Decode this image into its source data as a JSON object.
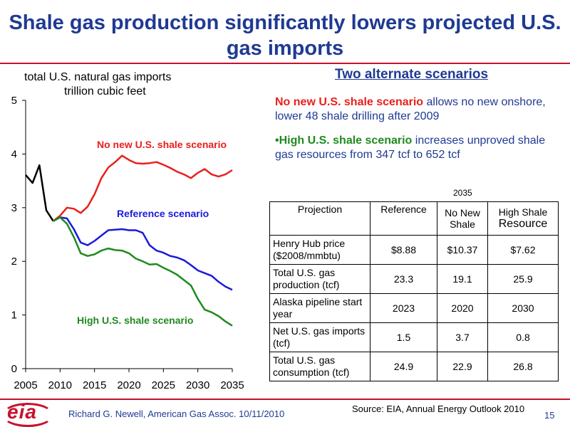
{
  "colors": {
    "title": "#1f3a93",
    "red": "#e8201c",
    "blue": "#1a1adb",
    "green": "#1f8a1f",
    "black": "#000000",
    "accent_text": "#1f3a93"
  },
  "slide": {
    "title_line1": "Shale gas production significantly lowers projected U.S.",
    "title_line2": "gas imports",
    "page_number": "15",
    "footer_text": "Richard G. Newell, American Gas Assoc. 10/11/2010",
    "source_text": "Source: EIA, Annual Energy Outlook 2010",
    "logo_text": "eia"
  },
  "chart_data": {
    "type": "line",
    "title": "total U.S. natural gas imports",
    "subtitle": "trillion cubic feet",
    "xlim": [
      2005,
      2035
    ],
    "ylim": [
      0,
      5
    ],
    "xticks": [
      2005,
      2010,
      2015,
      2020,
      2025,
      2030,
      2035
    ],
    "yticks": [
      0,
      1,
      2,
      3,
      4,
      5
    ],
    "grid": false,
    "series": [
      {
        "name": "history",
        "color": "#000000",
        "x": [
          2005,
          2006,
          2007,
          2008,
          2009
        ],
        "y": [
          3.61,
          3.46,
          3.79,
          2.95,
          2.75
        ]
      },
      {
        "name": "No new U.S. shale scenario",
        "color": "#e8201c",
        "x": [
          2009,
          2010,
          2011,
          2012,
          2013,
          2014,
          2015,
          2016,
          2017,
          2018,
          2019,
          2020,
          2021,
          2022,
          2023,
          2024,
          2025,
          2026,
          2027,
          2028,
          2029,
          2030,
          2031,
          2032,
          2033,
          2034,
          2035
        ],
        "y": [
          2.75,
          2.85,
          3.0,
          2.98,
          2.9,
          3.02,
          3.25,
          3.55,
          3.75,
          3.85,
          3.97,
          3.89,
          3.83,
          3.82,
          3.83,
          3.85,
          3.8,
          3.74,
          3.67,
          3.62,
          3.55,
          3.65,
          3.72,
          3.62,
          3.58,
          3.62,
          3.7
        ]
      },
      {
        "name": "Reference scenario",
        "color": "#1a1adb",
        "x": [
          2009,
          2010,
          2011,
          2012,
          2013,
          2014,
          2015,
          2016,
          2017,
          2018,
          2019,
          2020,
          2021,
          2022,
          2023,
          2024,
          2025,
          2026,
          2027,
          2028,
          2029,
          2030,
          2031,
          2032,
          2033,
          2034,
          2035
        ],
        "y": [
          2.75,
          2.82,
          2.8,
          2.6,
          2.35,
          2.3,
          2.38,
          2.48,
          2.58,
          2.59,
          2.6,
          2.58,
          2.58,
          2.53,
          2.3,
          2.2,
          2.16,
          2.1,
          2.07,
          2.02,
          1.93,
          1.83,
          1.78,
          1.73,
          1.62,
          1.53,
          1.47
        ]
      },
      {
        "name": "High U.S. shale scenario",
        "color": "#1f8a1f",
        "x": [
          2009,
          2010,
          2011,
          2012,
          2013,
          2014,
          2015,
          2016,
          2017,
          2018,
          2019,
          2020,
          2021,
          2022,
          2023,
          2024,
          2025,
          2026,
          2027,
          2028,
          2029,
          2030,
          2031,
          2032,
          2033,
          2034,
          2035
        ],
        "y": [
          2.75,
          2.82,
          2.7,
          2.45,
          2.15,
          2.1,
          2.13,
          2.2,
          2.24,
          2.21,
          2.2,
          2.15,
          2.05,
          2.0,
          1.94,
          1.95,
          1.88,
          1.82,
          1.75,
          1.65,
          1.55,
          1.3,
          1.1,
          1.05,
          0.98,
          0.88,
          0.8
        ]
      }
    ]
  },
  "scenarios": {
    "heading": "Two alternate scenarios",
    "bullet1_highlight": "No new U.S. shale scenario",
    "bullet1_rest": " allows no new onshore, lower 48 shale drilling after 2009",
    "bullet2_highlight": "•High U.S. shale scenario",
    "bullet2_rest": " increases unproved shale gas resources from 347 tcf to 652 tcf"
  },
  "table": {
    "year_label": "2035",
    "headers": [
      "Projection",
      "Reference",
      "No New Shale",
      "High Shale",
      "Resource"
    ],
    "rows": [
      {
        "label": "Henry Hub price ($2008/mmbtu)",
        "values": [
          "$8.88",
          "$10.37",
          "$7.62"
        ]
      },
      {
        "label": "Total U.S. gas production (tcf)",
        "values": [
          "23.3",
          "19.1",
          "25.9"
        ]
      },
      {
        "label": "Alaska pipeline start year",
        "values": [
          "2023",
          "2020",
          "2030"
        ]
      },
      {
        "label": "Net U.S. gas imports (tcf)",
        "values": [
          "1.5",
          "3.7",
          "0.8"
        ]
      },
      {
        "label": "Total U.S. gas consumption (tcf)",
        "values": [
          "24.9",
          "22.9",
          "26.8"
        ]
      }
    ]
  }
}
